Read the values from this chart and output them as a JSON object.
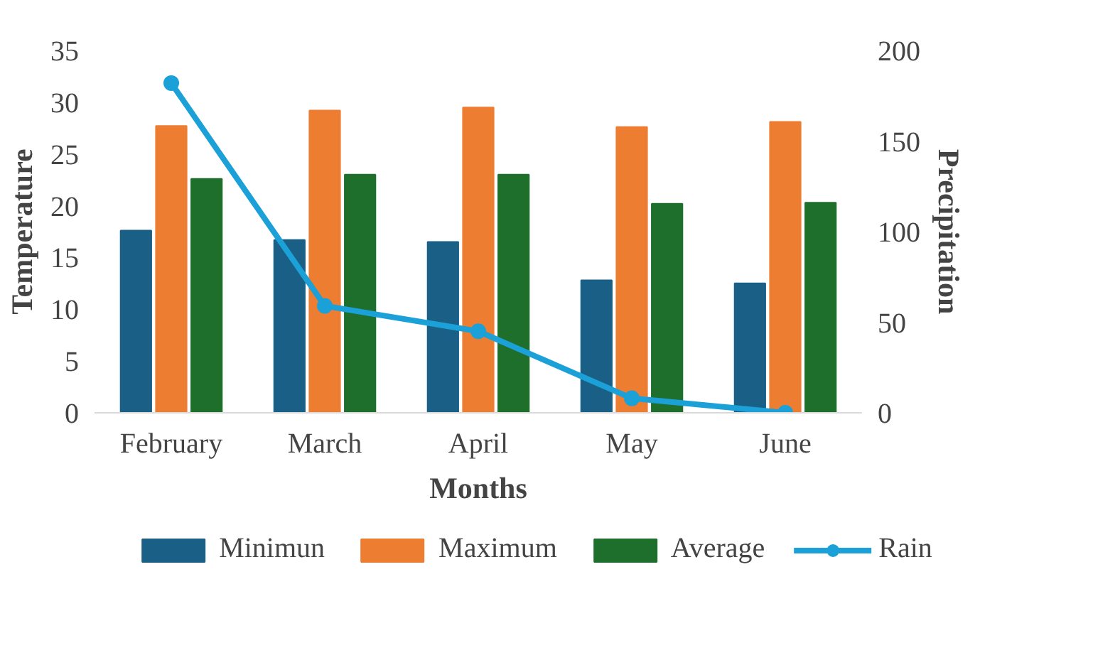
{
  "chart_data": {
    "type": "bar",
    "xlabel": "Months",
    "ylabel": "Temperature",
    "y2label": "Precipitation",
    "categories": [
      "February",
      "March",
      "April",
      "May",
      "June"
    ],
    "series": [
      {
        "name": "Minimun",
        "color": "#1a5f86",
        "values": [
          17.6,
          16.7,
          16.5,
          12.8,
          12.5
        ]
      },
      {
        "name": "Maximum",
        "color": "#ed7d31",
        "values": [
          27.7,
          29.2,
          29.5,
          27.6,
          28.1
        ]
      },
      {
        "name": "Average",
        "color": "#1e6f2b",
        "values": [
          22.6,
          23.0,
          23.0,
          20.2,
          20.3
        ]
      },
      {
        "name": "Rain",
        "type": "line",
        "axis": "y2",
        "color": "#1ba1d8",
        "marker": "circle",
        "values": [
          182,
          59,
          45,
          8,
          0
        ]
      }
    ],
    "ylim": [
      0,
      35
    ],
    "yticks": [
      0,
      5,
      10,
      15,
      20,
      25,
      30,
      35
    ],
    "y2lim": [
      0,
      200
    ],
    "y2ticks": [
      0,
      50,
      100,
      150,
      200
    ],
    "grid": false,
    "legend": "bottom"
  }
}
